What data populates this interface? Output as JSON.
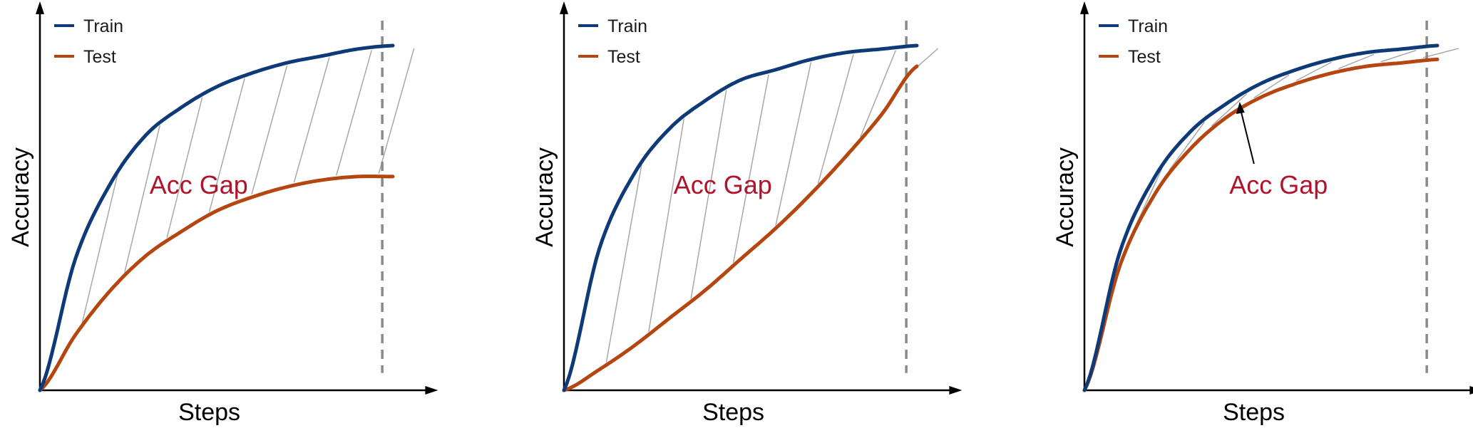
{
  "colors": {
    "train": "#0f3a78",
    "test": "#b5460f",
    "gap_label": "#b0132a",
    "axis": "#000000",
    "marker_line": "#8a8a8a",
    "hatch": "#a8a8a8"
  },
  "chart_data": [
    {
      "type": "line",
      "title": "",
      "xlabel": "Steps",
      "ylabel": "Accuracy",
      "xlim": [
        0,
        1.12
      ],
      "ylim": [
        0,
        1.12
      ],
      "legend_position": "top-left",
      "gap_label": "Acc Gap",
      "gap_hatched": true,
      "gap_arrow": false,
      "marker_x": 0.97,
      "series": [
        {
          "name": "Train",
          "x": [
            0,
            0.1,
            0.2,
            0.3,
            0.4,
            0.5,
            0.6,
            0.7,
            0.8,
            0.9,
            1.0
          ],
          "values": [
            0,
            0.38,
            0.6,
            0.74,
            0.82,
            0.88,
            0.92,
            0.95,
            0.97,
            0.99,
            1.0
          ]
        },
        {
          "name": "Test",
          "x": [
            0,
            0.1,
            0.2,
            0.3,
            0.4,
            0.5,
            0.6,
            0.7,
            0.8,
            0.9,
            1.0
          ],
          "values": [
            0,
            0.16,
            0.29,
            0.39,
            0.46,
            0.52,
            0.56,
            0.59,
            0.61,
            0.62,
            0.62
          ]
        }
      ]
    },
    {
      "type": "line",
      "title": "",
      "xlabel": "Steps",
      "ylabel": "Accuracy",
      "xlim": [
        0,
        1.12
      ],
      "ylim": [
        0,
        1.12
      ],
      "legend_position": "top-left",
      "gap_label": "Acc Gap",
      "gap_hatched": true,
      "gap_arrow": false,
      "marker_x": 0.97,
      "series": [
        {
          "name": "Train",
          "x": [
            0,
            0.1,
            0.2,
            0.3,
            0.4,
            0.5,
            0.6,
            0.7,
            0.8,
            0.9,
            1.0
          ],
          "values": [
            0,
            0.41,
            0.63,
            0.76,
            0.84,
            0.9,
            0.93,
            0.96,
            0.98,
            0.99,
            1.0
          ]
        },
        {
          "name": "Test",
          "x": [
            0,
            0.1,
            0.2,
            0.3,
            0.4,
            0.5,
            0.6,
            0.7,
            0.8,
            0.9,
            1.0
          ],
          "values": [
            0,
            0.06,
            0.13,
            0.21,
            0.29,
            0.38,
            0.47,
            0.57,
            0.68,
            0.8,
            0.94
          ]
        }
      ]
    },
    {
      "type": "line",
      "title": "",
      "xlabel": "Steps",
      "ylabel": "Accuracy",
      "xlim": [
        0,
        1.12
      ],
      "ylim": [
        0,
        1.12
      ],
      "legend_position": "top-left",
      "gap_label": "Acc Gap",
      "gap_hatched": true,
      "gap_arrow": true,
      "marker_x": 0.97,
      "series": [
        {
          "name": "Train",
          "x": [
            0,
            0.1,
            0.2,
            0.3,
            0.4,
            0.5,
            0.6,
            0.7,
            0.8,
            0.9,
            1.0
          ],
          "values": [
            0,
            0.4,
            0.62,
            0.75,
            0.83,
            0.89,
            0.93,
            0.96,
            0.98,
            0.99,
            1.0
          ]
        },
        {
          "name": "Test",
          "x": [
            0,
            0.1,
            0.2,
            0.3,
            0.4,
            0.5,
            0.6,
            0.7,
            0.8,
            0.9,
            1.0
          ],
          "values": [
            0,
            0.36,
            0.57,
            0.7,
            0.79,
            0.85,
            0.89,
            0.92,
            0.94,
            0.95,
            0.96
          ]
        }
      ]
    }
  ]
}
